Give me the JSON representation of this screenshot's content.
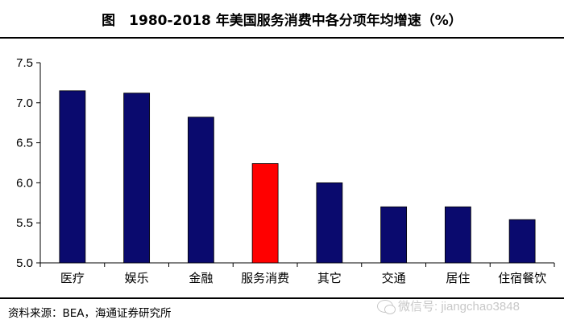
{
  "title": "图　1980-2018 年美国服务消费中各分项年均增速（%）",
  "source": "资料来源：BEA，海通证券研究所",
  "watermark": "微信号: jiangchao3848",
  "colors": {
    "default_bar": "#0a0a6e",
    "highlight_bar": "#ff0000"
  },
  "chart_data": {
    "type": "bar",
    "title": "1980-2018 年美国服务消费中各分项年均增速（%）",
    "categories": [
      "医疗",
      "娱乐",
      "金融",
      "服务消费",
      "其它",
      "交通",
      "居住",
      "住宿餐饮"
    ],
    "values": [
      7.15,
      7.12,
      6.82,
      6.24,
      6.0,
      5.7,
      5.7,
      5.54
    ],
    "highlight": "服务消费",
    "ylim": [
      5.0,
      7.5
    ],
    "yticks": [
      "5.0",
      "5.5",
      "6.0",
      "6.5",
      "7.0",
      "7.5"
    ],
    "xlabel": "",
    "ylabel": "",
    "grid": false,
    "legend": "none"
  }
}
